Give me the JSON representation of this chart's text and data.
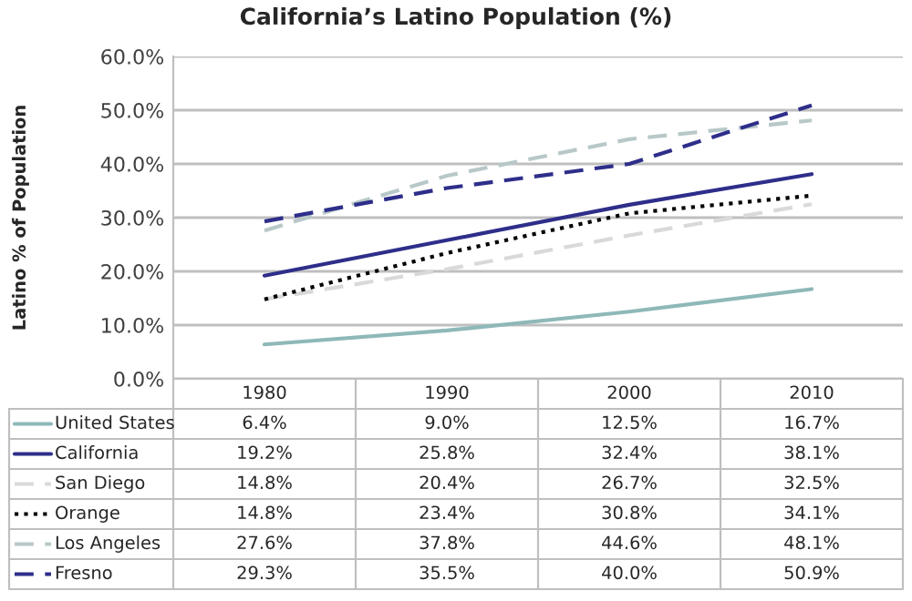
{
  "chart_data": {
    "type": "line",
    "title": "California’s Latino Population (%)",
    "ylabel": "Latino % of Population",
    "categories": [
      "1980",
      "1990",
      "2000",
      "2010"
    ],
    "series": [
      {
        "name": "United States",
        "color": "#8fb8b8",
        "line_style": "solid",
        "values": [
          6.4,
          9.0,
          12.5,
          16.7
        ],
        "value_labels": [
          "6.4%",
          "9.0%",
          "12.5%",
          "16.7%"
        ]
      },
      {
        "name": "California",
        "color": "#2e2e8a",
        "line_style": "solid",
        "values": [
          19.2,
          25.8,
          32.4,
          38.1
        ],
        "value_labels": [
          "19.2%",
          "25.8%",
          "32.4%",
          "38.1%"
        ]
      },
      {
        "name": "San Diego",
        "color": "#d9d9d9",
        "line_style": "dashed",
        "values": [
          14.8,
          20.4,
          26.7,
          32.5
        ],
        "value_labels": [
          "14.8%",
          "20.4%",
          "26.7%",
          "32.5%"
        ]
      },
      {
        "name": "Orange",
        "color": "#000000",
        "line_style": "dotted",
        "values": [
          14.8,
          23.4,
          30.8,
          34.1
        ],
        "value_labels": [
          "14.8%",
          "23.4%",
          "30.8%",
          "34.1%"
        ]
      },
      {
        "name": "Los Angeles",
        "color": "#b8c8c8",
        "line_style": "dashed",
        "values": [
          27.6,
          37.8,
          44.6,
          48.1
        ],
        "value_labels": [
          "27.6%",
          "37.8%",
          "44.6%",
          "48.1%"
        ]
      },
      {
        "name": "Fresno",
        "color": "#2e2e8a",
        "line_style": "dashed",
        "values": [
          29.3,
          35.5,
          40.0,
          50.9
        ],
        "value_labels": [
          "29.3%",
          "35.5%",
          "40.0%",
          "50.9%"
        ]
      }
    ],
    "ylim": [
      0,
      60
    ],
    "yticks": [
      {
        "value": 0,
        "label": "0.0%"
      },
      {
        "value": 10,
        "label": "10.0%"
      },
      {
        "value": 20,
        "label": "20.0%"
      },
      {
        "value": 30,
        "label": "30.0%"
      },
      {
        "value": 40,
        "label": "40.0%"
      },
      {
        "value": 50,
        "label": "50.0%"
      },
      {
        "value": 60,
        "label": "60.0%"
      }
    ],
    "grid": "y",
    "legend": "bottom left"
  }
}
